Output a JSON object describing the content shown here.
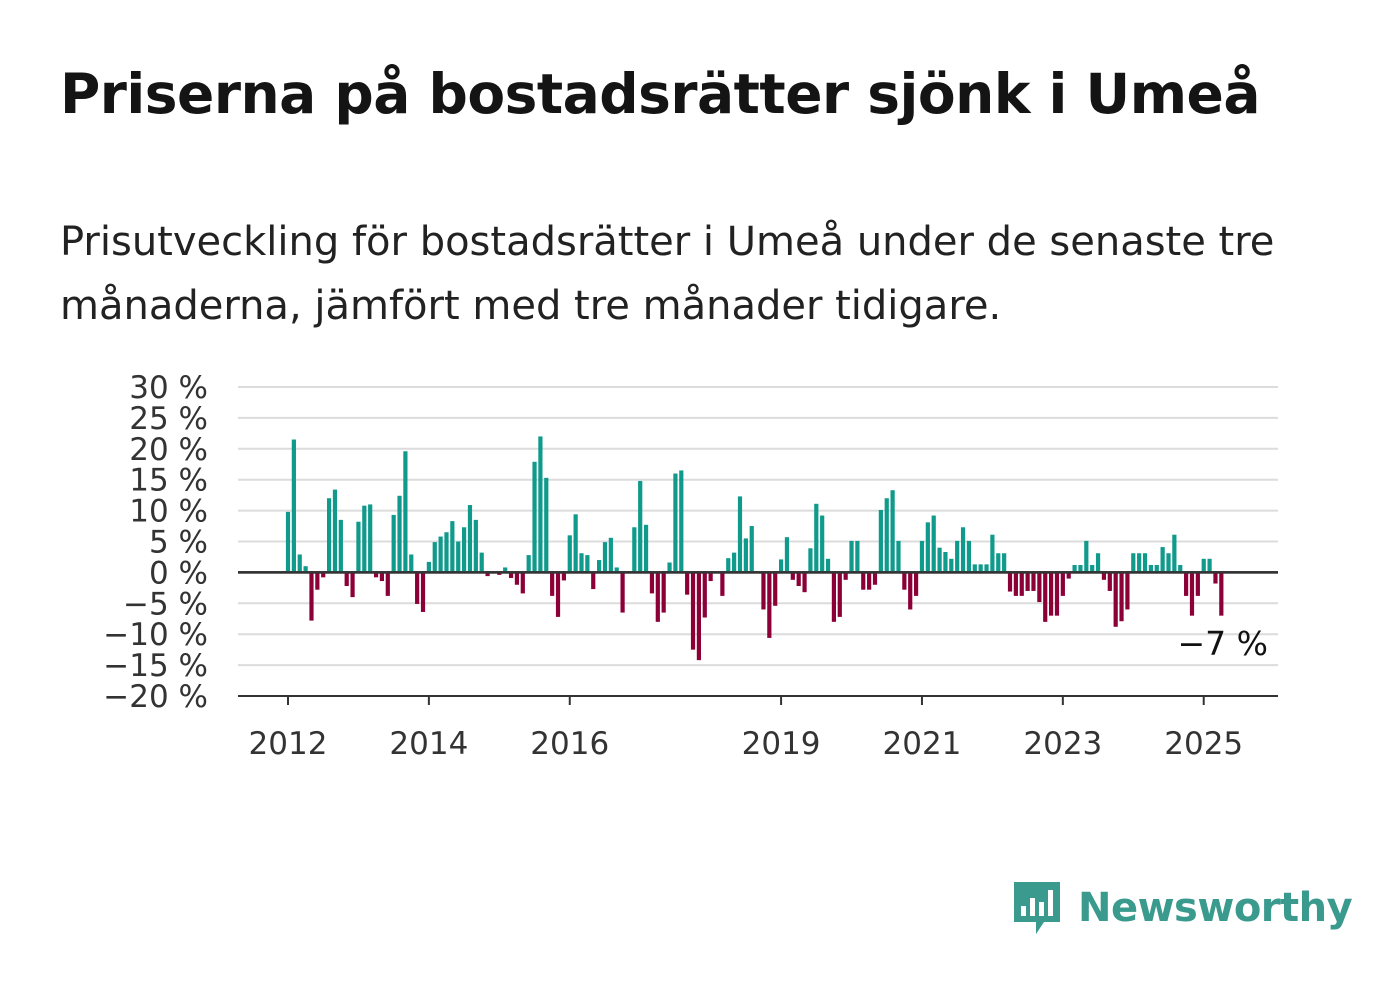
{
  "title": "Priserna på bostadsrätter sjönk i Umeå",
  "subtitle": "Prisutveckling för bostadsrätter i Umeå under de senaste tre månaderna, jämfört med tre månader tidigare.",
  "brand": {
    "name": "Newsworthy",
    "color": "#3a9a8e",
    "icon": "newsworthy-logo-icon"
  },
  "chart_data": {
    "type": "bar",
    "x_start": "2012-01",
    "frequency": "monthly",
    "positive_color": "#0f9a8c",
    "negative_color": "#8c0038",
    "ylim": [
      -20,
      30
    ],
    "y_ticks": [
      30,
      25,
      20,
      15,
      10,
      5,
      0,
      -5,
      -10,
      -15,
      -20
    ],
    "y_tick_labels": [
      "30 %",
      "25 %",
      "20 %",
      "15 %",
      "10 %",
      "5 %",
      "0 %",
      "−5 %",
      "−10 %",
      "−15 %",
      "−20 %"
    ],
    "x_tick_labels": [
      "2012",
      "2014",
      "2016",
      "2019",
      "2021",
      "2023",
      "2025"
    ],
    "x_tick_dates": [
      "2012-01",
      "2014-01",
      "2016-01",
      "2019-01",
      "2021-01",
      "2023-01",
      "2025-01"
    ],
    "grid": true,
    "annotation": {
      "label": "−7 %",
      "value": -7,
      "date": "2025-04"
    },
    "values": [
      9.8,
      21.5,
      2.9,
      1.0,
      -7.8,
      -2.8,
      -0.8,
      12.0,
      13.4,
      8.5,
      -2.2,
      -4.0,
      8.2,
      10.8,
      11.0,
      -0.8,
      -1.4,
      -3.8,
      9.3,
      12.4,
      19.6,
      2.9,
      -5.1,
      -6.4,
      1.7,
      4.9,
      5.8,
      6.5,
      8.3,
      5.0,
      7.3,
      10.9,
      8.5,
      3.2,
      -0.6,
      0.0,
      -0.4,
      0.8,
      -0.9,
      -2.0,
      -3.4,
      2.8,
      17.9,
      22.0,
      15.3,
      -3.8,
      -7.2,
      -1.3,
      6.0,
      9.4,
      3.1,
      2.8,
      -2.7,
      2.0,
      4.9,
      5.6,
      0.8,
      -6.5,
      0.0,
      7.3,
      14.8,
      7.7,
      -3.4,
      -8.0,
      -6.5,
      1.6,
      16.0,
      16.5,
      -3.6,
      -12.5,
      -14.2,
      -7.3,
      -1.4,
      0.0,
      -3.8,
      2.3,
      3.2,
      12.3,
      5.5,
      7.5,
      0.0,
      -6.0,
      -10.6,
      -5.4,
      2.1,
      5.7,
      -1.2,
      -2.2,
      -3.2,
      3.9,
      11.1,
      9.2,
      2.2,
      -8.0,
      -7.2,
      -1.2,
      5.1,
      5.1,
      -2.8,
      -2.8,
      -2.0,
      10.1,
      12.0,
      13.3,
      5.1,
      -2.8,
      -6.0,
      -3.8,
      5.1,
      8.1,
      9.2,
      4.0,
      3.3,
      2.2,
      5.1,
      7.3,
      5.1,
      1.3,
      1.3,
      1.3,
      6.1,
      3.1,
      3.1,
      -3.1,
      -3.8,
      -3.8,
      -3.0,
      -3.0,
      -4.8,
      -8.0,
      -7.0,
      -7.0,
      -3.8,
      -1.0,
      1.2,
      1.2,
      5.1,
      1.2,
      3.1,
      -1.2,
      -3.0,
      -8.8,
      -7.9,
      -6.0,
      3.1,
      3.1,
      3.1,
      1.2,
      1.2,
      4.1,
      3.1,
      6.1,
      1.2,
      -3.8,
      -7.0,
      -3.8,
      2.2,
      2.2,
      -1.8,
      -7.0
    ]
  }
}
